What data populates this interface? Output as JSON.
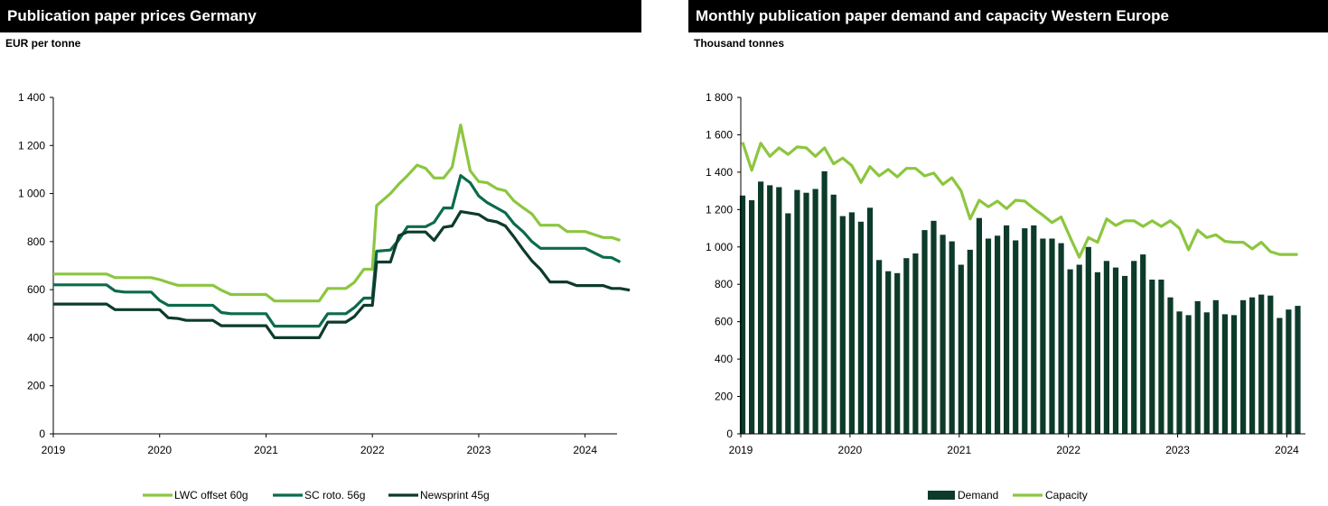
{
  "colors": {
    "lwc": "#8cc63f",
    "sc": "#0b6b4c",
    "newsprint": "#0d3b2a",
    "demand": "#0d3b2a",
    "capacity": "#8cc63f"
  },
  "chart_data": [
    {
      "type": "line",
      "title": "Publication paper prices Germany",
      "ylabel": "EUR per tonne",
      "xlabel": "",
      "ylim": [
        0,
        1400
      ],
      "yticks": [
        0,
        200,
        400,
        600,
        800,
        1000,
        1200,
        1400
      ],
      "ytick_labels": [
        "0",
        "200",
        "400",
        "600",
        "800",
        "1 000",
        "1 200",
        "1 400"
      ],
      "xlim": [
        2019.0,
        2024.3
      ],
      "xticks": [
        2019,
        2020,
        2021,
        2022,
        2023,
        2024
      ],
      "xtick_labels": [
        "2019",
        "2020",
        "2021",
        "2022",
        "2023",
        "2024"
      ],
      "grid": false,
      "legend": "bottom",
      "series": [
        {
          "name": "LWC offset 60g",
          "color": "#8cc63f",
          "points": [
            [
              2019.0,
              665
            ],
            [
              2019.5,
              665
            ],
            [
              2019.58,
              650
            ],
            [
              2019.92,
              650
            ],
            [
              2020.0,
              642
            ],
            [
              2020.08,
              630
            ],
            [
              2020.17,
              618
            ],
            [
              2020.5,
              618
            ],
            [
              2020.58,
              598
            ],
            [
              2020.67,
              580
            ],
            [
              2021.0,
              580
            ],
            [
              2021.08,
              553
            ],
            [
              2021.5,
              553
            ],
            [
              2021.58,
              605
            ],
            [
              2021.75,
              605
            ],
            [
              2021.83,
              630
            ],
            [
              2021.92,
              685
            ],
            [
              2022.0,
              685
            ],
            [
              2022.04,
              950
            ],
            [
              2022.17,
              1000
            ],
            [
              2022.25,
              1040
            ],
            [
              2022.33,
              1075
            ],
            [
              2022.42,
              1118
            ],
            [
              2022.5,
              1105
            ],
            [
              2022.58,
              1065
            ],
            [
              2022.67,
              1065
            ],
            [
              2022.75,
              1110
            ],
            [
              2022.83,
              1285
            ],
            [
              2022.92,
              1095
            ],
            [
              2023.0,
              1050
            ],
            [
              2023.08,
              1045
            ],
            [
              2023.17,
              1020
            ],
            [
              2023.25,
              1012
            ],
            [
              2023.33,
              970
            ],
            [
              2023.42,
              940
            ],
            [
              2023.5,
              915
            ],
            [
              2023.58,
              868
            ],
            [
              2023.75,
              868
            ],
            [
              2023.83,
              842
            ],
            [
              2024.0,
              842
            ],
            [
              2024.08,
              830
            ],
            [
              2024.17,
              817
            ],
            [
              2024.25,
              817
            ],
            [
              2024.33,
              805
            ]
          ]
        },
        {
          "name": "SC roto. 56g",
          "color": "#0b6b4c",
          "points": [
            [
              2019.0,
              620
            ],
            [
              2019.5,
              620
            ],
            [
              2019.58,
              595
            ],
            [
              2019.67,
              590
            ],
            [
              2019.92,
              590
            ],
            [
              2020.0,
              555
            ],
            [
              2020.08,
              535
            ],
            [
              2020.5,
              535
            ],
            [
              2020.58,
              505
            ],
            [
              2020.67,
              500
            ],
            [
              2021.0,
              500
            ],
            [
              2021.08,
              448
            ],
            [
              2021.5,
              448
            ],
            [
              2021.58,
              500
            ],
            [
              2021.75,
              500
            ],
            [
              2021.83,
              525
            ],
            [
              2021.92,
              565
            ],
            [
              2022.0,
              565
            ],
            [
              2022.04,
              760
            ],
            [
              2022.17,
              765
            ],
            [
              2022.25,
              808
            ],
            [
              2022.33,
              862
            ],
            [
              2022.5,
              862
            ],
            [
              2022.58,
              880
            ],
            [
              2022.67,
              940
            ],
            [
              2022.75,
              940
            ],
            [
              2022.83,
              1075
            ],
            [
              2022.92,
              1045
            ],
            [
              2023.0,
              990
            ],
            [
              2023.08,
              962
            ],
            [
              2023.17,
              940
            ],
            [
              2023.25,
              920
            ],
            [
              2023.33,
              875
            ],
            [
              2023.42,
              840
            ],
            [
              2023.5,
              800
            ],
            [
              2023.58,
              772
            ],
            [
              2024.0,
              772
            ],
            [
              2024.17,
              735
            ],
            [
              2024.25,
              733
            ],
            [
              2024.33,
              715
            ]
          ]
        },
        {
          "name": "Newsprint 45g",
          "color": "#0d3b2a",
          "points": [
            [
              2019.0,
              540
            ],
            [
              2019.5,
              540
            ],
            [
              2019.58,
              517
            ],
            [
              2020.0,
              517
            ],
            [
              2020.08,
              483
            ],
            [
              2020.17,
              480
            ],
            [
              2020.25,
              472
            ],
            [
              2020.5,
              472
            ],
            [
              2020.58,
              450
            ],
            [
              2021.0,
              450
            ],
            [
              2021.08,
              400
            ],
            [
              2021.5,
              400
            ],
            [
              2021.58,
              465
            ],
            [
              2021.75,
              465
            ],
            [
              2021.83,
              488
            ],
            [
              2021.92,
              535
            ],
            [
              2022.0,
              535
            ],
            [
              2022.04,
              715
            ],
            [
              2022.17,
              715
            ],
            [
              2022.25,
              825
            ],
            [
              2022.33,
              840
            ],
            [
              2022.5,
              840
            ],
            [
              2022.58,
              805
            ],
            [
              2022.67,
              860
            ],
            [
              2022.75,
              865
            ],
            [
              2022.83,
              925
            ],
            [
              2023.0,
              913
            ],
            [
              2023.08,
              890
            ],
            [
              2023.17,
              882
            ],
            [
              2023.25,
              865
            ],
            [
              2023.33,
              820
            ],
            [
              2023.42,
              765
            ],
            [
              2023.5,
              720
            ],
            [
              2023.58,
              685
            ],
            [
              2023.67,
              632
            ],
            [
              2023.83,
              632
            ],
            [
              2023.92,
              617
            ],
            [
              2024.17,
              617
            ],
            [
              2024.25,
              605
            ],
            [
              2024.33,
              605
            ],
            [
              2024.42,
              598
            ]
          ]
        }
      ]
    },
    {
      "type": "bar+line",
      "title": "Monthly publication paper demand and capacity Western Europe",
      "ylabel": "Thousand tonnes",
      "xlabel": "",
      "ylim": [
        0,
        1800
      ],
      "yticks": [
        0,
        200,
        400,
        600,
        800,
        1000,
        1200,
        1400,
        1600,
        1800
      ],
      "ytick_labels": [
        "0",
        "200",
        "400",
        "600",
        "800",
        "1 000",
        "1 200",
        "1 400",
        "1 600",
        "1 800"
      ],
      "xlim": [
        2019.0,
        2024.17
      ],
      "xticks": [
        2019,
        2020,
        2021,
        2022,
        2023,
        2024
      ],
      "xtick_labels": [
        "2019",
        "2020",
        "2021",
        "2022",
        "2023",
        "2024"
      ],
      "grid": false,
      "legend": "bottom",
      "series": [
        {
          "name": "Demand",
          "type": "bar",
          "color": "#0d3b2a",
          "values": [
            1275,
            1250,
            1350,
            1330,
            1320,
            1180,
            1305,
            1290,
            1310,
            1405,
            1280,
            1165,
            1185,
            1135,
            1210,
            930,
            870,
            860,
            940,
            965,
            1090,
            1140,
            1065,
            1030,
            905,
            985,
            1155,
            1045,
            1060,
            1115,
            1035,
            1100,
            1115,
            1045,
            1045,
            1020,
            880,
            905,
            1000,
            865,
            925,
            890,
            845,
            925,
            960,
            825,
            825,
            730,
            655,
            635,
            710,
            650,
            715,
            640,
            635,
            715,
            730,
            745,
            740,
            620,
            665,
            685
          ]
        },
        {
          "name": "Capacity",
          "type": "line",
          "color": "#8cc63f",
          "values": [
            1560,
            1410,
            1555,
            1485,
            1530,
            1495,
            1535,
            1530,
            1485,
            1530,
            1445,
            1475,
            1435,
            1345,
            1430,
            1380,
            1415,
            1375,
            1420,
            1420,
            1380,
            1395,
            1335,
            1370,
            1300,
            1150,
            1250,
            1215,
            1245,
            1205,
            1250,
            1245,
            1205,
            1170,
            1130,
            1160,
            1050,
            945,
            1050,
            1025,
            1150,
            1115,
            1140,
            1140,
            1110,
            1140,
            1110,
            1140,
            1100,
            985,
            1090,
            1050,
            1065,
            1030,
            1025,
            1025,
            990,
            1025,
            975,
            960,
            960,
            960
          ]
        }
      ]
    }
  ]
}
